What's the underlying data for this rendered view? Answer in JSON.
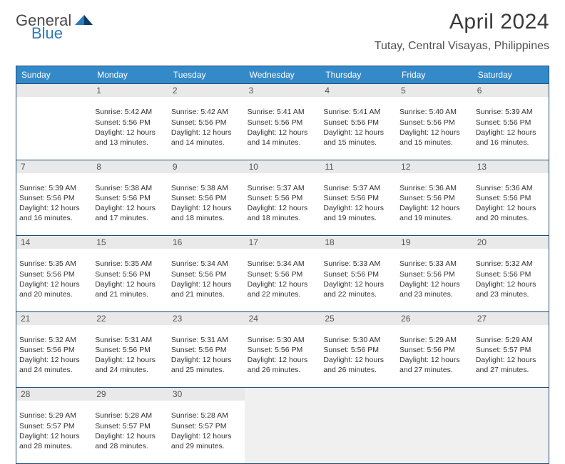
{
  "logo": {
    "word1": "General",
    "word2": "Blue"
  },
  "header": {
    "month_title": "April 2024",
    "location": "Tutay, Central Visayas, Philippines"
  },
  "colors": {
    "header_bg": "#348ac9",
    "header_fg": "#ffffff",
    "border": "#1e4a72",
    "daynum_bg": "#e9e9e9",
    "daynum_fg": "#555555",
    "empty_fill": "#f0f0f0",
    "text": "#333333",
    "logo_gray": "#4a4a4a",
    "logo_blue": "#2a7ac0"
  },
  "dow": [
    "Sunday",
    "Monday",
    "Tuesday",
    "Wednesday",
    "Thursday",
    "Friday",
    "Saturday"
  ],
  "weeks": [
    [
      null,
      {
        "n": "1",
        "sr": "Sunrise: 5:42 AM",
        "ss": "Sunset: 5:56 PM",
        "d1": "Daylight: 12 hours",
        "d2": "and 13 minutes."
      },
      {
        "n": "2",
        "sr": "Sunrise: 5:42 AM",
        "ss": "Sunset: 5:56 PM",
        "d1": "Daylight: 12 hours",
        "d2": "and 14 minutes."
      },
      {
        "n": "3",
        "sr": "Sunrise: 5:41 AM",
        "ss": "Sunset: 5:56 PM",
        "d1": "Daylight: 12 hours",
        "d2": "and 14 minutes."
      },
      {
        "n": "4",
        "sr": "Sunrise: 5:41 AM",
        "ss": "Sunset: 5:56 PM",
        "d1": "Daylight: 12 hours",
        "d2": "and 15 minutes."
      },
      {
        "n": "5",
        "sr": "Sunrise: 5:40 AM",
        "ss": "Sunset: 5:56 PM",
        "d1": "Daylight: 12 hours",
        "d2": "and 15 minutes."
      },
      {
        "n": "6",
        "sr": "Sunrise: 5:39 AM",
        "ss": "Sunset: 5:56 PM",
        "d1": "Daylight: 12 hours",
        "d2": "and 16 minutes."
      }
    ],
    [
      {
        "n": "7",
        "sr": "Sunrise: 5:39 AM",
        "ss": "Sunset: 5:56 PM",
        "d1": "Daylight: 12 hours",
        "d2": "and 16 minutes."
      },
      {
        "n": "8",
        "sr": "Sunrise: 5:38 AM",
        "ss": "Sunset: 5:56 PM",
        "d1": "Daylight: 12 hours",
        "d2": "and 17 minutes."
      },
      {
        "n": "9",
        "sr": "Sunrise: 5:38 AM",
        "ss": "Sunset: 5:56 PM",
        "d1": "Daylight: 12 hours",
        "d2": "and 18 minutes."
      },
      {
        "n": "10",
        "sr": "Sunrise: 5:37 AM",
        "ss": "Sunset: 5:56 PM",
        "d1": "Daylight: 12 hours",
        "d2": "and 18 minutes."
      },
      {
        "n": "11",
        "sr": "Sunrise: 5:37 AM",
        "ss": "Sunset: 5:56 PM",
        "d1": "Daylight: 12 hours",
        "d2": "and 19 minutes."
      },
      {
        "n": "12",
        "sr": "Sunrise: 5:36 AM",
        "ss": "Sunset: 5:56 PM",
        "d1": "Daylight: 12 hours",
        "d2": "and 19 minutes."
      },
      {
        "n": "13",
        "sr": "Sunrise: 5:36 AM",
        "ss": "Sunset: 5:56 PM",
        "d1": "Daylight: 12 hours",
        "d2": "and 20 minutes."
      }
    ],
    [
      {
        "n": "14",
        "sr": "Sunrise: 5:35 AM",
        "ss": "Sunset: 5:56 PM",
        "d1": "Daylight: 12 hours",
        "d2": "and 20 minutes."
      },
      {
        "n": "15",
        "sr": "Sunrise: 5:35 AM",
        "ss": "Sunset: 5:56 PM",
        "d1": "Daylight: 12 hours",
        "d2": "and 21 minutes."
      },
      {
        "n": "16",
        "sr": "Sunrise: 5:34 AM",
        "ss": "Sunset: 5:56 PM",
        "d1": "Daylight: 12 hours",
        "d2": "and 21 minutes."
      },
      {
        "n": "17",
        "sr": "Sunrise: 5:34 AM",
        "ss": "Sunset: 5:56 PM",
        "d1": "Daylight: 12 hours",
        "d2": "and 22 minutes."
      },
      {
        "n": "18",
        "sr": "Sunrise: 5:33 AM",
        "ss": "Sunset: 5:56 PM",
        "d1": "Daylight: 12 hours",
        "d2": "and 22 minutes."
      },
      {
        "n": "19",
        "sr": "Sunrise: 5:33 AM",
        "ss": "Sunset: 5:56 PM",
        "d1": "Daylight: 12 hours",
        "d2": "and 23 minutes."
      },
      {
        "n": "20",
        "sr": "Sunrise: 5:32 AM",
        "ss": "Sunset: 5:56 PM",
        "d1": "Daylight: 12 hours",
        "d2": "and 23 minutes."
      }
    ],
    [
      {
        "n": "21",
        "sr": "Sunrise: 5:32 AM",
        "ss": "Sunset: 5:56 PM",
        "d1": "Daylight: 12 hours",
        "d2": "and 24 minutes."
      },
      {
        "n": "22",
        "sr": "Sunrise: 5:31 AM",
        "ss": "Sunset: 5:56 PM",
        "d1": "Daylight: 12 hours",
        "d2": "and 24 minutes."
      },
      {
        "n": "23",
        "sr": "Sunrise: 5:31 AM",
        "ss": "Sunset: 5:56 PM",
        "d1": "Daylight: 12 hours",
        "d2": "and 25 minutes."
      },
      {
        "n": "24",
        "sr": "Sunrise: 5:30 AM",
        "ss": "Sunset: 5:56 PM",
        "d1": "Daylight: 12 hours",
        "d2": "and 26 minutes."
      },
      {
        "n": "25",
        "sr": "Sunrise: 5:30 AM",
        "ss": "Sunset: 5:56 PM",
        "d1": "Daylight: 12 hours",
        "d2": "and 26 minutes."
      },
      {
        "n": "26",
        "sr": "Sunrise: 5:29 AM",
        "ss": "Sunset: 5:56 PM",
        "d1": "Daylight: 12 hours",
        "d2": "and 27 minutes."
      },
      {
        "n": "27",
        "sr": "Sunrise: 5:29 AM",
        "ss": "Sunset: 5:57 PM",
        "d1": "Daylight: 12 hours",
        "d2": "and 27 minutes."
      }
    ],
    [
      {
        "n": "28",
        "sr": "Sunrise: 5:29 AM",
        "ss": "Sunset: 5:57 PM",
        "d1": "Daylight: 12 hours",
        "d2": "and 28 minutes."
      },
      {
        "n": "29",
        "sr": "Sunrise: 5:28 AM",
        "ss": "Sunset: 5:57 PM",
        "d1": "Daylight: 12 hours",
        "d2": "and 28 minutes."
      },
      {
        "n": "30",
        "sr": "Sunrise: 5:28 AM",
        "ss": "Sunset: 5:57 PM",
        "d1": "Daylight: 12 hours",
        "d2": "and 29 minutes."
      },
      null,
      null,
      null,
      null
    ]
  ]
}
